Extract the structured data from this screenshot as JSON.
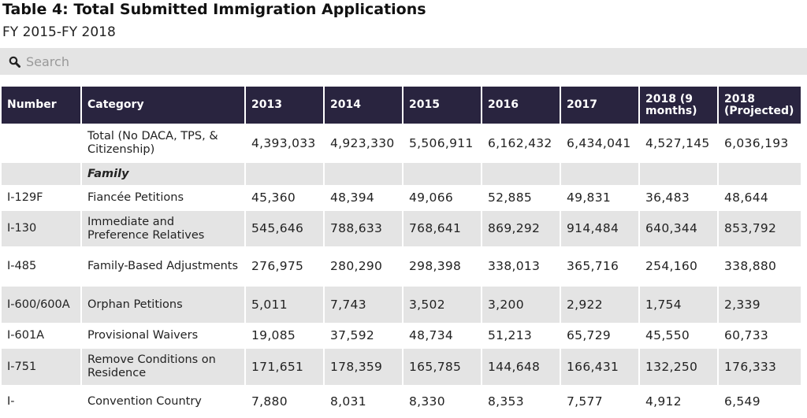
{
  "title": "Table 4: Total Submitted Immigration Applications",
  "subtitle": "FY 2015-FY 2018",
  "search": {
    "placeholder": "Search",
    "icon": "search-icon"
  },
  "colors": {
    "header_bg": "#29243f",
    "stripe": "#e4e4e4"
  },
  "columns": [
    "Number",
    "Category",
    "2013",
    "2014",
    "2015",
    "2016",
    "2017",
    "2018 (9 months)",
    "2018 (Projected)"
  ],
  "rows": [
    {
      "number": "",
      "category": "Total (No DACA, TPS, & Citizenship)",
      "values": [
        "4,393,033",
        "4,923,330",
        "5,506,911",
        "6,162,432",
        "6,434,041",
        "4,527,145",
        "6,036,193"
      ]
    },
    {
      "number": "",
      "category": "Family",
      "section": true,
      "values": [
        "",
        "",
        "",
        "",
        "",
        "",
        ""
      ]
    },
    {
      "number": "I-129F",
      "category": "Fiancée Petitions",
      "values": [
        "45,360",
        "48,394",
        "49,066",
        "52,885",
        "49,831",
        "36,483",
        "48,644"
      ]
    },
    {
      "number": "I-130",
      "category": "Immediate and Preference Relatives",
      "values": [
        "545,646",
        "788,633",
        "768,641",
        "869,292",
        "914,484",
        "640,344",
        "853,792"
      ]
    },
    {
      "number": "I-485",
      "category": "Family-Based Adjustments",
      "values": [
        "276,975",
        "280,290",
        "298,398",
        "338,013",
        "365,716",
        "254,160",
        "338,880"
      ]
    },
    {
      "number": "I-600/600A",
      "category": "Orphan Petitions",
      "values": [
        "5,011",
        "7,743",
        "3,502",
        "3,200",
        "2,922",
        "1,754",
        "2,339"
      ]
    },
    {
      "number": "I-601A",
      "category": "Provisional Waivers",
      "values": [
        "19,085",
        "37,592",
        "48,734",
        "51,213",
        "65,729",
        "45,550",
        "60,733"
      ]
    },
    {
      "number": "I-751",
      "category": "Remove Conditions on Residence",
      "values": [
        "171,651",
        "178,359",
        "165,785",
        "144,648",
        "166,431",
        "132,250",
        "176,333"
      ]
    },
    {
      "number": "I-",
      "category": "Convention Country",
      "values": [
        "7,880",
        "8,031",
        "8,330",
        "8,353",
        "7,577",
        "4,912",
        "6,549"
      ]
    }
  ]
}
